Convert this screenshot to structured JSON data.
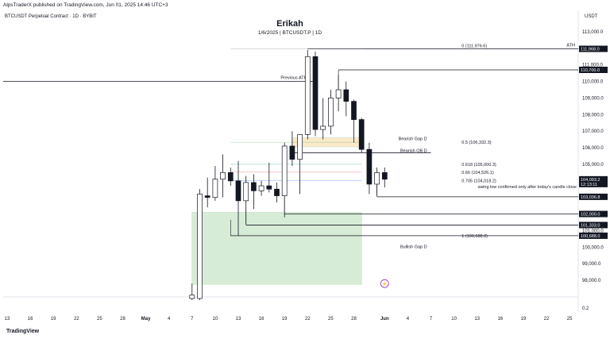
{
  "header": {
    "publisher": "AlpsTraderX published on TradingView.com, Jun 01, 2025 14:46 UTC+3",
    "symbol_legend": "BTCUSDT Perpetual Contract · 1D · BYBIT",
    "currency": "USDT",
    "footer": "TradingView"
  },
  "chart_data": {
    "type": "candlestick",
    "title": "Erikah",
    "subtitle": "1/6/2025 | BTCUSDT.P | 1D",
    "ylim": [
      96800,
      114000
    ],
    "y_ticks": [
      98000,
      99000,
      100000,
      101000,
      102000,
      103000,
      104000,
      105000,
      106000,
      107000,
      108000,
      109000,
      110000,
      111000,
      112000,
      113000
    ],
    "y_tick_labels": [
      "98,000.0",
      "99,000.0",
      "100,000.0",
      "101,000.0",
      "102,000.0",
      "103,000.0",
      "104,000.0",
      "105,000.0",
      "106,000.0",
      "107,000.0",
      "108,000.0",
      "109,000.0",
      "110,000.0",
      "111,000.0",
      "112,000.0",
      "113,000.0"
    ],
    "bottom_axis_value": "0.2",
    "x_ticks": [
      {
        "day": 0,
        "label": "13"
      },
      {
        "day": 3,
        "label": "16"
      },
      {
        "day": 6,
        "label": "19"
      },
      {
        "day": 9,
        "label": "22"
      },
      {
        "day": 12,
        "label": "25"
      },
      {
        "day": 15,
        "label": "28"
      },
      {
        "day": 18,
        "label": "May"
      },
      {
        "day": 21,
        "label": "4"
      },
      {
        "day": 24,
        "label": "7"
      },
      {
        "day": 27,
        "label": "10"
      },
      {
        "day": 30,
        "label": "13"
      },
      {
        "day": 33,
        "label": "16"
      },
      {
        "day": 36,
        "label": "19"
      },
      {
        "day": 39,
        "label": "22"
      },
      {
        "day": 42,
        "label": "25"
      },
      {
        "day": 45,
        "label": "28"
      },
      {
        "day": 49,
        "label": "Jun"
      },
      {
        "day": 52,
        "label": "4"
      },
      {
        "day": 55,
        "label": "7"
      },
      {
        "day": 58,
        "label": "10"
      },
      {
        "day": 61,
        "label": "13"
      },
      {
        "day": 64,
        "label": "16"
      },
      {
        "day": 67,
        "label": "19"
      },
      {
        "day": 70,
        "label": "22"
      },
      {
        "day": 73,
        "label": "25"
      }
    ],
    "candles": [
      {
        "day": 24,
        "o": 96900,
        "h": 97800,
        "l": 96800,
        "c": 97100
      },
      {
        "day": 25,
        "o": 96900,
        "h": 103500,
        "l": 96800,
        "c": 103200
      },
      {
        "day": 26,
        "o": 103100,
        "h": 104200,
        "l": 102400,
        "c": 103000
      },
      {
        "day": 27,
        "o": 103000,
        "h": 104900,
        "l": 102800,
        "c": 104100
      },
      {
        "day": 28,
        "o": 104100,
        "h": 105600,
        "l": 103000,
        "c": 104500
      },
      {
        "day": 29,
        "o": 104500,
        "h": 104800,
        "l": 103700,
        "c": 104000
      },
      {
        "day": 30,
        "o": 104000,
        "h": 105200,
        "l": 100700,
        "c": 102800
      },
      {
        "day": 31,
        "o": 102800,
        "h": 104300,
        "l": 101400,
        "c": 103900
      },
      {
        "day": 32,
        "o": 103900,
        "h": 104400,
        "l": 102300,
        "c": 103400
      },
      {
        "day": 33,
        "o": 103400,
        "h": 104000,
        "l": 103100,
        "c": 103700
      },
      {
        "day": 34,
        "o": 103700,
        "h": 105100,
        "l": 103300,
        "c": 103500
      },
      {
        "day": 35,
        "o": 103500,
        "h": 103900,
        "l": 102700,
        "c": 103100
      },
      {
        "day": 36,
        "o": 103100,
        "h": 106300,
        "l": 101800,
        "c": 106100
      },
      {
        "day": 37,
        "o": 106100,
        "h": 107000,
        "l": 104900,
        "c": 105300
      },
      {
        "day": 38,
        "o": 105300,
        "h": 106800,
        "l": 103200,
        "c": 106800
      },
      {
        "day": 39,
        "o": 106800,
        "h": 111900,
        "l": 106500,
        "c": 111500
      },
      {
        "day": 40,
        "o": 111500,
        "h": 111800,
        "l": 106700,
        "c": 107100
      },
      {
        "day": 41,
        "o": 107100,
        "h": 109000,
        "l": 106500,
        "c": 107300
      },
      {
        "day": 42,
        "o": 107300,
        "h": 109500,
        "l": 106800,
        "c": 109000
      },
      {
        "day": 43,
        "o": 109000,
        "h": 110400,
        "l": 108200,
        "c": 109500
      },
      {
        "day": 44,
        "o": 109500,
        "h": 110000,
        "l": 107900,
        "c": 108800
      },
      {
        "day": 45,
        "o": 108800,
        "h": 108900,
        "l": 106300,
        "c": 107700
      },
      {
        "day": 46,
        "o": 107700,
        "h": 107800,
        "l": 105700,
        "c": 105900
      },
      {
        "day": 47,
        "o": 105900,
        "h": 106300,
        "l": 103200,
        "c": 103800
      },
      {
        "day": 48,
        "o": 103800,
        "h": 104800,
        "l": 103100,
        "c": 104500
      },
      {
        "day": 49,
        "o": 104500,
        "h": 104800,
        "l": 103600,
        "c": 104100
      }
    ],
    "levels": [
      {
        "label": "0 (111,976.6)",
        "price": 111976.6,
        "color": "#787b86"
      },
      {
        "label": "0.5 (106,332.3)",
        "price": 106332.3,
        "color": "#4caf50"
      },
      {
        "label": "0.618 (105,000.3)",
        "price": 105000.3,
        "color": "#089981"
      },
      {
        "label": "0.66 (104,526.1)",
        "price": 104526.1,
        "color": "#f23645"
      },
      {
        "label": "0.705 (104,018.2)",
        "price": 104018.2,
        "color": "#2962ff"
      },
      {
        "label": "1 (100,688.0)",
        "price": 100688.0,
        "color": "#787b86"
      }
    ],
    "annotations": [
      {
        "text": "ATH",
        "price": 111968
      },
      {
        "text": "Previous ATH",
        "price": 110000
      },
      {
        "text": "Bearish Gap D",
        "price": 106450
      },
      {
        "text": "Bearish OB D",
        "price": 105750
      },
      {
        "text": "swing low confirmed only after today's candle close",
        "price": 103270
      },
      {
        "text": "Bullish Gap D",
        "price": 99950
      }
    ],
    "price_tags": [
      {
        "text": "111,968.0",
        "price": 111968.0,
        "style": "dark"
      },
      {
        "text": "110,700.0",
        "price": 110700.0,
        "style": "dark"
      },
      {
        "text": "104,093.2",
        "price": 104093.2,
        "style": "dark",
        "subtext": "12:13:11"
      },
      {
        "text": "103,036.8",
        "price": 103036.8,
        "style": "dark"
      },
      {
        "text": "102,000.0",
        "price": 102000.0,
        "style": "dark"
      },
      {
        "text": "101,333.0",
        "price": 101333.0,
        "style": "dark"
      },
      {
        "text": "100,688.0",
        "price": 100688.0,
        "style": "dark"
      }
    ],
    "zones": [
      {
        "name": "bullish-gap",
        "price_top": 102100,
        "price_bottom": 97750,
        "day_start": 24,
        "day_end": 46,
        "color": "#d7ecd6"
      },
      {
        "name": "bearish-gap",
        "price_top": 106600,
        "price_bottom": 106050,
        "day_start": 37,
        "day_end": 46,
        "color": "#fbe9c9"
      }
    ]
  }
}
